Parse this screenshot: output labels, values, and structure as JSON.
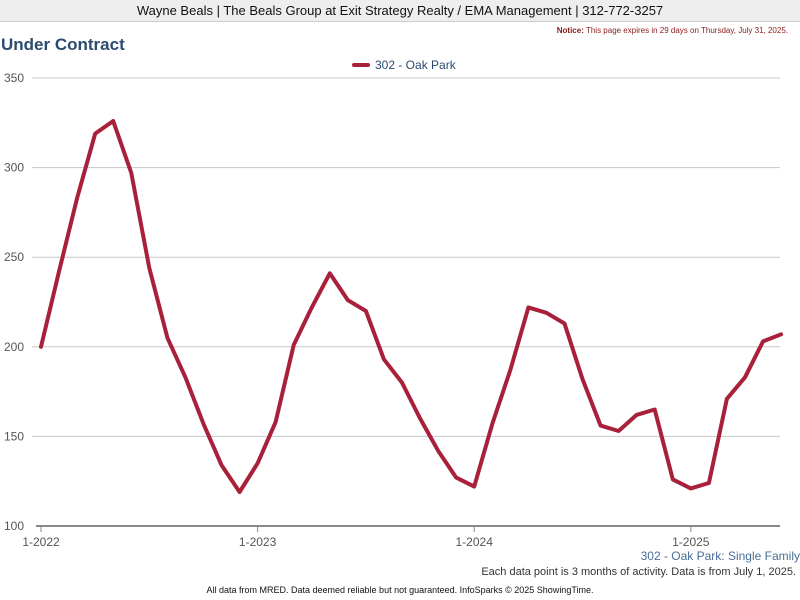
{
  "header": {
    "text": "Wayne Beals | The Beals Group at Exit Strategy Realty / EMA Management | 312-772-3257"
  },
  "notice": {
    "label": "Notice:",
    "text": "This page expires in 29 days on Thursday, July 31, 2025."
  },
  "chart_data": {
    "type": "line",
    "title": "Under Contract",
    "xlabel": "",
    "ylabel": "",
    "ylim": [
      100,
      350
    ],
    "yticks": [
      100,
      150,
      200,
      250,
      300,
      350
    ],
    "xtick_labels": [
      "1-2022",
      "1-2023",
      "1-2024",
      "1-2025"
    ],
    "grid": true,
    "legend_placement": "top-center",
    "colors": {
      "series": "#a8203a",
      "grid": "#c8c8c8",
      "axis": "#888888"
    },
    "series": [
      {
        "name": "302 - Oak Park",
        "x": [
          "2022-01",
          "2022-02",
          "2022-03",
          "2022-04",
          "2022-05",
          "2022-06",
          "2022-07",
          "2022-08",
          "2022-09",
          "2022-10",
          "2022-11",
          "2022-12",
          "2023-01",
          "2023-02",
          "2023-03",
          "2023-04",
          "2023-05",
          "2023-06",
          "2023-07",
          "2023-08",
          "2023-09",
          "2023-10",
          "2023-11",
          "2023-12",
          "2024-01",
          "2024-02",
          "2024-03",
          "2024-04",
          "2024-05",
          "2024-06",
          "2024-07",
          "2024-08",
          "2024-09",
          "2024-10",
          "2024-11",
          "2024-12",
          "2025-01",
          "2025-02",
          "2025-03",
          "2025-04",
          "2025-05",
          "2025-06"
        ],
        "values": [
          200,
          242,
          283,
          319,
          326,
          297,
          244,
          205,
          183,
          157,
          134,
          119,
          135,
          158,
          201,
          222,
          241,
          226,
          220,
          193,
          180,
          160,
          142,
          127,
          122,
          157,
          187,
          222,
          219,
          213,
          182,
          156,
          153,
          162,
          165,
          126,
          121,
          124,
          171,
          183,
          203,
          207
        ]
      }
    ]
  },
  "footer": {
    "series_label": "302 - Oak Park: Single Family",
    "note": "Each data point is 3 months of activity. Data is from July 1, 2025.",
    "disclaimer": "All data from MRED. Data deemed reliable but not guaranteed. InfoSparks © 2025 ShowingTime."
  }
}
